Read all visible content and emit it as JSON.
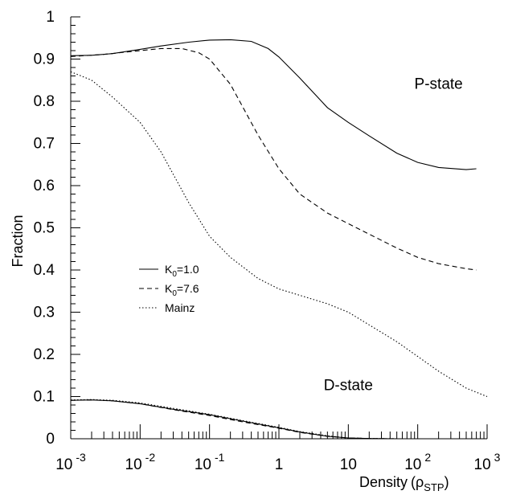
{
  "chart_data": {
    "type": "line",
    "title": "",
    "xlabel": "Density",
    "xlabel_unit_main": "ρ",
    "xlabel_unit_sub": "STP",
    "ylabel": "Fraction",
    "xscale": "log",
    "xlim": [
      0.001,
      1000
    ],
    "ylim": [
      0,
      1
    ],
    "grid": false,
    "legend_position": "center-left",
    "x_ticks": [
      {
        "value": 0.001,
        "base": "10",
        "exp": "-3"
      },
      {
        "value": 0.01,
        "base": "10",
        "exp": "-2"
      },
      {
        "value": 0.1,
        "base": "10",
        "exp": "-1"
      },
      {
        "value": 1,
        "base": "1",
        "exp": ""
      },
      {
        "value": 10,
        "base": "10",
        "exp": ""
      },
      {
        "value": 100,
        "base": "10",
        "exp": "2"
      },
      {
        "value": 1000,
        "base": "10",
        "exp": "3"
      }
    ],
    "y_ticks": [
      {
        "value": 0,
        "label": "0"
      },
      {
        "value": 0.1,
        "label": "0.1"
      },
      {
        "value": 0.2,
        "label": "0.2"
      },
      {
        "value": 0.3,
        "label": "0.3"
      },
      {
        "value": 0.4,
        "label": "0.4"
      },
      {
        "value": 0.5,
        "label": "0.5"
      },
      {
        "value": 0.6,
        "label": "0.6"
      },
      {
        "value": 0.7,
        "label": "0.7"
      },
      {
        "value": 0.8,
        "label": "0.8"
      },
      {
        "value": 0.9,
        "label": "0.9"
      },
      {
        "value": 1,
        "label": "1"
      }
    ],
    "series": [
      {
        "name": "K0=1.0",
        "legend_main": "K",
        "legend_sub": "0",
        "legend_rest": "=1.0",
        "style": "solid",
        "x": [
          0.001,
          0.002,
          0.004,
          0.01,
          0.02,
          0.05,
          0.1,
          0.2,
          0.4,
          0.7,
          1,
          2,
          5,
          10,
          20,
          50,
          100,
          200,
          500,
          700
        ],
        "y": [
          0.908,
          0.909,
          0.913,
          0.923,
          0.931,
          0.94,
          0.945,
          0.946,
          0.942,
          0.925,
          0.905,
          0.855,
          0.785,
          0.75,
          0.718,
          0.677,
          0.655,
          0.643,
          0.638,
          0.64
        ]
      },
      {
        "name": "K0=7.6",
        "legend_main": "K",
        "legend_sub": "0",
        "legend_rest": "=7.6",
        "style": "dashed",
        "x": [
          0.001,
          0.003,
          0.01,
          0.02,
          0.04,
          0.07,
          0.1,
          0.2,
          0.5,
          1,
          2,
          5,
          10,
          20,
          50,
          100,
          200,
          500,
          700
        ],
        "y": [
          0.906,
          0.911,
          0.92,
          0.925,
          0.925,
          0.915,
          0.9,
          0.84,
          0.72,
          0.64,
          0.58,
          0.535,
          0.51,
          0.485,
          0.452,
          0.43,
          0.415,
          0.403,
          0.4
        ]
      },
      {
        "name": "Mainz",
        "legend_main": "Mainz",
        "legend_sub": "",
        "legend_rest": "",
        "style": "dotted",
        "x": [
          0.001,
          0.002,
          0.004,
          0.01,
          0.02,
          0.05,
          0.1,
          0.2,
          0.5,
          1,
          2,
          5,
          10,
          20,
          50,
          100,
          200,
          500,
          1000
        ],
        "y": [
          0.87,
          0.85,
          0.81,
          0.75,
          0.68,
          0.56,
          0.48,
          0.43,
          0.38,
          0.355,
          0.34,
          0.32,
          0.3,
          0.27,
          0.23,
          0.195,
          0.16,
          0.12,
          0.1
        ]
      },
      {
        "name": "D-state K0=1.0",
        "style": "solid",
        "in_legend": false,
        "x": [
          0.001,
          0.002,
          0.004,
          0.01,
          0.03,
          0.1,
          0.3,
          1,
          2,
          5,
          10,
          20,
          50,
          100,
          300,
          700
        ],
        "y": [
          0.091,
          0.092,
          0.09,
          0.083,
          0.07,
          0.057,
          0.042,
          0.026,
          0.016,
          0.006,
          0.002,
          0.0005,
          0,
          0,
          0,
          0
        ]
      },
      {
        "name": "D-state K0=7.6",
        "style": "dashed",
        "in_legend": false,
        "x": [
          0.001,
          0.002,
          0.004,
          0.01,
          0.03,
          0.1,
          0.3,
          1,
          2,
          5,
          10,
          20,
          50,
          100,
          300,
          700
        ],
        "y": [
          0.091,
          0.092,
          0.09,
          0.083,
          0.069,
          0.055,
          0.04,
          0.025,
          0.015,
          0.006,
          0.002,
          0.0005,
          0,
          0,
          0,
          0
        ]
      },
      {
        "name": "D-state Mainz",
        "style": "dotted",
        "in_legend": false,
        "x": [
          0.001,
          0.002,
          0.004,
          0.01,
          0.03,
          0.1,
          0.3,
          1,
          2,
          5,
          10,
          20,
          50,
          100,
          300,
          700
        ],
        "y": [
          0.092,
          0.093,
          0.091,
          0.085,
          0.072,
          0.058,
          0.043,
          0.027,
          0.017,
          0.007,
          0.002,
          0.0005,
          0,
          0,
          0,
          0
        ]
      }
    ],
    "annotations": [
      {
        "text": "P-state",
        "x": 200,
        "y": 0.83
      },
      {
        "text": "D-state",
        "x": 10,
        "y": 0.115
      }
    ]
  }
}
